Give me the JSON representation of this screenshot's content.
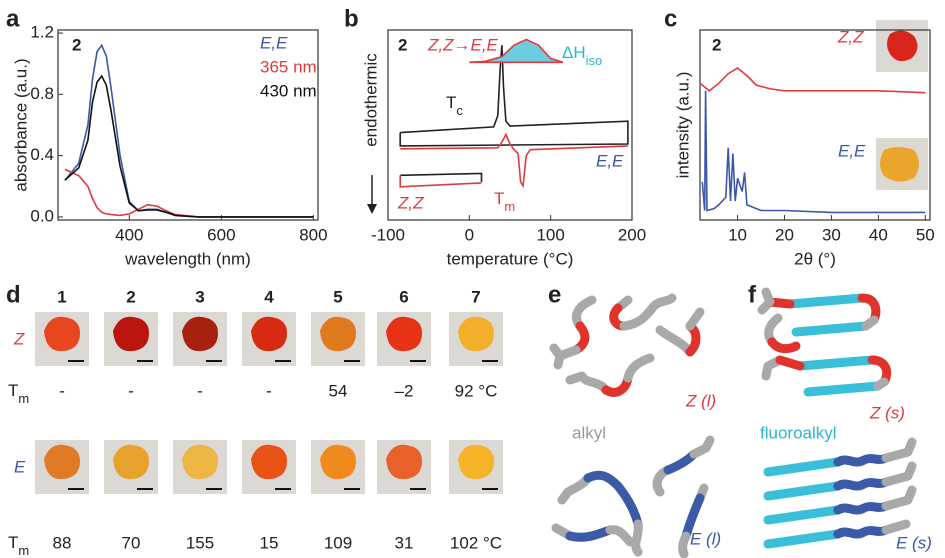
{
  "chart_data": [
    {
      "type": "line",
      "panel": "a",
      "label": "2",
      "xlabel": "wavelength (nm)",
      "ylabel": "absorbance (a.u.)",
      "x": [
        260,
        290,
        310,
        320,
        330,
        340,
        350,
        360,
        380,
        400,
        420,
        440,
        460,
        480,
        500,
        550,
        600,
        800
      ],
      "series": [
        {
          "name": "E,E",
          "color": "#3b57a7",
          "values": [
            0.24,
            0.35,
            0.6,
            0.9,
            1.08,
            1.12,
            1.05,
            0.85,
            0.4,
            0.1,
            0.04,
            0.05,
            0.05,
            0.03,
            0.01,
            0,
            0,
            0
          ]
        },
        {
          "name": "365 nm",
          "color": "#e2393c",
          "values": [
            0.31,
            0.27,
            0.2,
            0.12,
            0.06,
            0.03,
            0.02,
            0.015,
            0.01,
            0.02,
            0.05,
            0.08,
            0.07,
            0.04,
            0.015,
            0,
            0,
            0
          ]
        },
        {
          "name": "430 nm",
          "color": "#111111",
          "values": [
            0.24,
            0.32,
            0.5,
            0.75,
            0.88,
            0.92,
            0.86,
            0.7,
            0.33,
            0.09,
            0.04,
            0.045,
            0.045,
            0.03,
            0.01,
            0,
            0,
            0
          ]
        }
      ],
      "xlim": [
        245,
        810
      ],
      "ylim": [
        -0.02,
        1.22
      ],
      "xticks": [
        400,
        600,
        800
      ],
      "yticks": [
        {
          "value": 0,
          "label": "0.0"
        },
        0.4,
        0.8,
        1.2
      ],
      "legend": "upper right"
    },
    {
      "type": "line",
      "panel": "b",
      "label": "2",
      "xlabel": "temperature (°C)",
      "ylabel": "endothermic",
      "inset_label": "Z,Z→E,E",
      "dh": "ΔH",
      "dh_sub": "iso",
      "tc": "T",
      "tc_sub": "c",
      "tm": "T",
      "tm_sub": "m",
      "ee": "E,E",
      "zz": "Z,Z",
      "series": [
        {
          "color": "#222222",
          "x": [
            -85,
            30,
            35,
            38,
            40,
            42,
            45,
            50,
            195,
            195,
            -85,
            -85
          ],
          "values": [
            4.6,
            4.9,
            5.5,
            8,
            9.2,
            7,
            5.2,
            4.95,
            5.2,
            4.0,
            3.9,
            4.6
          ]
        },
        {
          "color": "#e2393c",
          "x": [
            -85,
            35,
            40,
            45,
            50,
            55,
            60,
            63,
            66,
            70,
            75,
            195
          ],
          "values": [
            3.75,
            3.8,
            4.1,
            4.5,
            4.0,
            3.7,
            3.5,
            2.0,
            1.8,
            3.4,
            3.7,
            3.9
          ]
        },
        {
          "color": "#222222",
          "x": [
            -85,
            15,
            15
          ],
          "values": [
            2.35,
            2.45,
            2.0
          ]
        },
        {
          "color": "#e2393c",
          "x": [
            -85,
            -85,
            15
          ],
          "values": [
            2.35,
            1.75,
            1.95
          ]
        },
        {
          "color": "#e2393c",
          "fill": "#6dcde0",
          "x": [
            0,
            20,
            40,
            55,
            70,
            85,
            100,
            115
          ],
          "values": [
            8.3,
            8.35,
            8.6,
            9.2,
            9.5,
            9.2,
            8.5,
            8.3
          ]
        }
      ],
      "xlim": [
        -100,
        200
      ],
      "ylim": [
        0,
        10
      ],
      "xticks": [
        -100,
        0,
        100,
        200
      ]
    },
    {
      "type": "line",
      "panel": "c",
      "label": "2",
      "xlabel": "2θ (°)",
      "ylabel": "intensity (a.u.)",
      "series": [
        {
          "name": "Z,Z",
          "color": "#e2393c",
          "x": [
            2,
            4,
            6,
            8,
            10,
            12,
            14,
            17,
            20,
            30,
            40,
            50
          ],
          "values": [
            7.2,
            6.8,
            7.2,
            7.7,
            8.0,
            7.6,
            7.1,
            6.9,
            6.8,
            6.8,
            6.8,
            6.7
          ]
        },
        {
          "name": "E,E",
          "color": "#3b57a7",
          "x": [
            2.5,
            3,
            3.2,
            3.5,
            5,
            6,
            7.5,
            8,
            8.5,
            9,
            9.5,
            10,
            11,
            11.5,
            12,
            13,
            15,
            20,
            30,
            40,
            50
          ],
          "values": [
            2,
            0.5,
            6.8,
            0.5,
            0.6,
            0.8,
            1.2,
            3.8,
            1.0,
            3.5,
            1.0,
            2.2,
            1.5,
            2.5,
            0.8,
            0.7,
            0.5,
            0.5,
            0.4,
            0.4,
            0.4
          ]
        }
      ],
      "xlim": [
        2,
        51
      ],
      "ylim": [
        0,
        10
      ],
      "xticks": [
        10,
        20,
        30,
        40,
        50
      ]
    }
  ],
  "table": {
    "label": "d",
    "columns": [
      "1",
      "2",
      "3",
      "4",
      "5",
      "6",
      "7"
    ],
    "row_z": "Z",
    "row_e": "E",
    "tm_label": "T",
    "tm_sub": "m",
    "tm_z": [
      "-",
      "-",
      "-",
      "-",
      "54",
      "–2",
      "92 °C"
    ],
    "tm_e": [
      "88",
      "70",
      "155",
      "15",
      "109",
      "31",
      "102 °C"
    ]
  },
  "diagrams": {
    "e": {
      "label": "e",
      "z": "Z (l)",
      "e": "E (l)",
      "alkyl": "alkyl"
    },
    "f": {
      "label": "f",
      "z": "Z (s)",
      "e": "E (s)",
      "fluoroalkyl": "fluoroalkyl"
    }
  }
}
